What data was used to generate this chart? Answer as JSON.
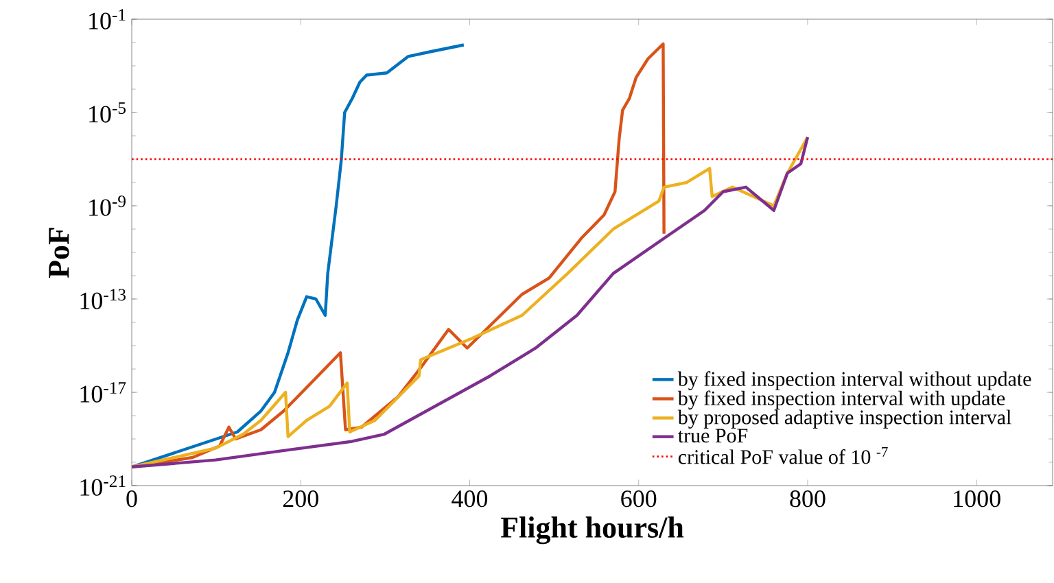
{
  "chart_data": {
    "type": "line",
    "xlabel": "Flight hours/h",
    "ylabel": "PoF",
    "log": "y",
    "xlim": [
      0,
      1090
    ],
    "xticks": [
      0,
      200,
      400,
      600,
      800,
      1000
    ],
    "ylim": [
      1e-21,
      0.1
    ],
    "yticks": [
      {
        "value": 1e-21,
        "label": "10$^{-21}$"
      },
      {
        "value": 1e-17,
        "label": "10$^{-17}$"
      },
      {
        "value": 1e-13,
        "label": "10$^{-13}$"
      },
      {
        "value": 1e-09,
        "label": "10$^{-9}$"
      },
      {
        "value": 1e-05,
        "label": "10$^{-5}$"
      },
      {
        "value": 0.1,
        "label": "10$^{-1}$"
      }
    ],
    "legend": "bottom right",
    "series": [
      {
        "name": "by fixed inspection interval without update",
        "color": "#0072bd",
        "x": [
          0,
          125,
          153,
          169,
          185,
          196,
          207,
          218,
          229,
          232,
          242,
          248,
          252,
          261,
          270,
          278,
          302,
          327,
          353,
          393
        ],
        "values": [
          6.3e-21,
          2e-19,
          1.6e-18,
          1e-17,
          5e-16,
          1.26e-14,
          1.26e-13,
          1e-13,
          2e-14,
          1.26e-12,
          1e-09,
          9e-08,
          1e-05,
          4e-05,
          0.0002,
          0.0004,
          0.0005,
          0.0025,
          0.004,
          0.0079
        ]
      },
      {
        "name": "by fixed inspection interval with update",
        "color": "#d95319",
        "x": [
          0,
          72,
          104,
          115,
          123,
          153,
          180,
          207,
          247,
          253,
          272,
          315,
          343,
          375,
          397,
          462,
          494,
          532,
          559,
          572,
          577,
          581,
          589,
          597,
          611,
          629,
          630
        ],
        "values": [
          6.3e-21,
          1.6e-20,
          5e-20,
          3.2e-19,
          1e-19,
          2.5e-19,
          1.6e-18,
          1.6e-17,
          5e-16,
          2.5e-19,
          3.2e-19,
          6.3e-18,
          1.26e-16,
          5e-15,
          7.9e-16,
          1.6e-13,
          7.9e-13,
          4e-11,
          4e-10,
          4e-09,
          7.9e-07,
          1.26e-05,
          4e-05,
          0.00032,
          0.002,
          0.0087,
          6.3e-11
        ]
      },
      {
        "name": "by proposed adaptive inspection interval",
        "color": "#edb120",
        "x": [
          0,
          99,
          132,
          153,
          182,
          185,
          207,
          234,
          255,
          258,
          288,
          340,
          342,
          402,
          462,
          516,
          570,
          624,
          630,
          657,
          684,
          687,
          711,
          760,
          776,
          800
        ],
        "values": [
          6.3e-21,
          4e-20,
          1.6e-19,
          6.3e-19,
          1e-17,
          1.26e-19,
          6.3e-19,
          2.5e-18,
          2.5e-17,
          2e-19,
          6.3e-19,
          5e-17,
          2.5e-16,
          2e-15,
          2e-14,
          1.26e-12,
          1e-10,
          1.6e-09,
          6.3e-09,
          1e-08,
          4e-08,
          2.5e-09,
          6.3e-09,
          1e-09,
          2.5e-08,
          8.7e-07
        ]
      },
      {
        "name": "true PoF",
        "color": "#7e2f8e",
        "x": [
          0,
          99,
          180,
          261,
          299,
          369,
          424,
          478,
          527,
          570,
          630,
          678,
          700,
          727,
          760,
          776,
          792,
          800
        ],
        "values": [
          6.3e-21,
          1.26e-20,
          3.2e-20,
          7.9e-20,
          1.6e-19,
          4e-18,
          5e-17,
          7.9e-16,
          2e-14,
          1.26e-12,
          4e-11,
          6.3e-10,
          4e-09,
          6.3e-09,
          6.3e-10,
          2.5e-08,
          6.3e-08,
          8.7e-07
        ]
      }
    ],
    "ref_lines": [
      {
        "axis": "y",
        "value": 1e-07,
        "label": "critical PoF value of 10 $^{-7}$",
        "color": "#ff0000",
        "line_style": "dotted"
      }
    ]
  }
}
